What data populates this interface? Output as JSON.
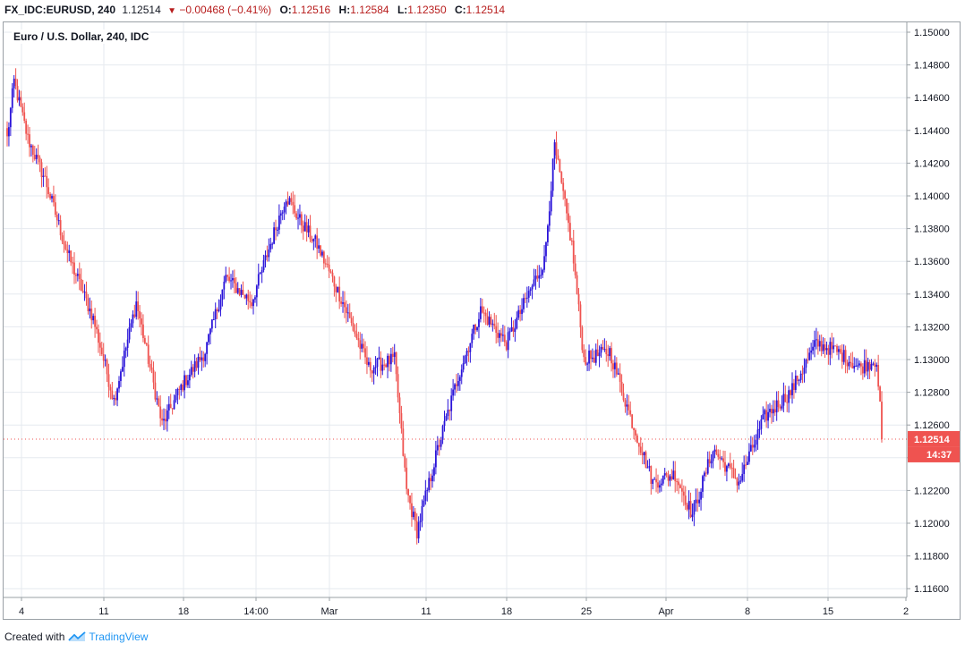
{
  "header": {
    "symbol": "FX_IDC:EURUSD, 240",
    "last": "1.12514",
    "change": "−0.00468 (−0.41%)",
    "open_label": "O:",
    "open": "1.12516",
    "high_label": "H:",
    "high": "1.12584",
    "low_label": "L:",
    "low": "1.12350",
    "close_label": "C:",
    "close": "1.12514"
  },
  "chart_title": "Euro / U.S. Dollar, 240, IDC",
  "footer": {
    "created_with": "Created with",
    "brand": "TradingView"
  },
  "colors": {
    "up": "#2a14d9",
    "down": "#ef5350",
    "grid": "#e6eaef",
    "price_tag": "#ef5350"
  },
  "chart_data": {
    "type": "candlestick",
    "x_tick_labels": [
      "4",
      "11",
      "18",
      "14:00",
      "Mar",
      "11",
      "18",
      "25",
      "Apr",
      "8",
      "15",
      "2"
    ],
    "y_tick_labels": [
      "1.15000",
      "1.14800",
      "1.14600",
      "1.14400",
      "1.14200",
      "1.14000",
      "1.13800",
      "1.13600",
      "1.13400",
      "1.13200",
      "1.13000",
      "1.12800",
      "1.12600",
      "1.12400",
      "1.12200",
      "1.12000",
      "1.11800",
      "1.11600"
    ],
    "ylim": [
      1.1155,
      1.1505
    ],
    "grid": true,
    "last_price_label": "1.12514",
    "countdown_label": "14:37",
    "last_price": 1.12514,
    "anchors": [
      [
        0,
        1.1435
      ],
      [
        4,
        1.147
      ],
      [
        12,
        1.1435
      ],
      [
        22,
        1.141
      ],
      [
        35,
        1.1365
      ],
      [
        50,
        1.1325
      ],
      [
        62,
        1.1275
      ],
      [
        75,
        1.1335
      ],
      [
        90,
        1.126
      ],
      [
        102,
        1.1285
      ],
      [
        115,
        1.1305
      ],
      [
        127,
        1.135
      ],
      [
        142,
        1.1335
      ],
      [
        162,
        1.14
      ],
      [
        170,
        1.1385
      ],
      [
        180,
        1.137
      ],
      [
        195,
        1.1335
      ],
      [
        210,
        1.1295
      ],
      [
        225,
        1.13
      ],
      [
        232,
        1.122
      ],
      [
        238,
        1.1195
      ],
      [
        250,
        1.1245
      ],
      [
        262,
        1.129
      ],
      [
        275,
        1.133
      ],
      [
        290,
        1.131
      ],
      [
        305,
        1.1345
      ],
      [
        312,
        1.136
      ],
      [
        318,
        1.143
      ],
      [
        328,
        1.137
      ],
      [
        335,
        1.13
      ],
      [
        350,
        1.1305
      ],
      [
        362,
        1.1265
      ],
      [
        375,
        1.1225
      ],
      [
        388,
        1.123
      ],
      [
        398,
        1.1205
      ],
      [
        410,
        1.1245
      ],
      [
        425,
        1.1225
      ],
      [
        440,
        1.1265
      ],
      [
        455,
        1.128
      ],
      [
        470,
        1.131
      ],
      [
        482,
        1.1305
      ],
      [
        495,
        1.1295
      ],
      [
        505,
        1.13
      ],
      [
        508,
        1.1255
      ]
    ]
  }
}
